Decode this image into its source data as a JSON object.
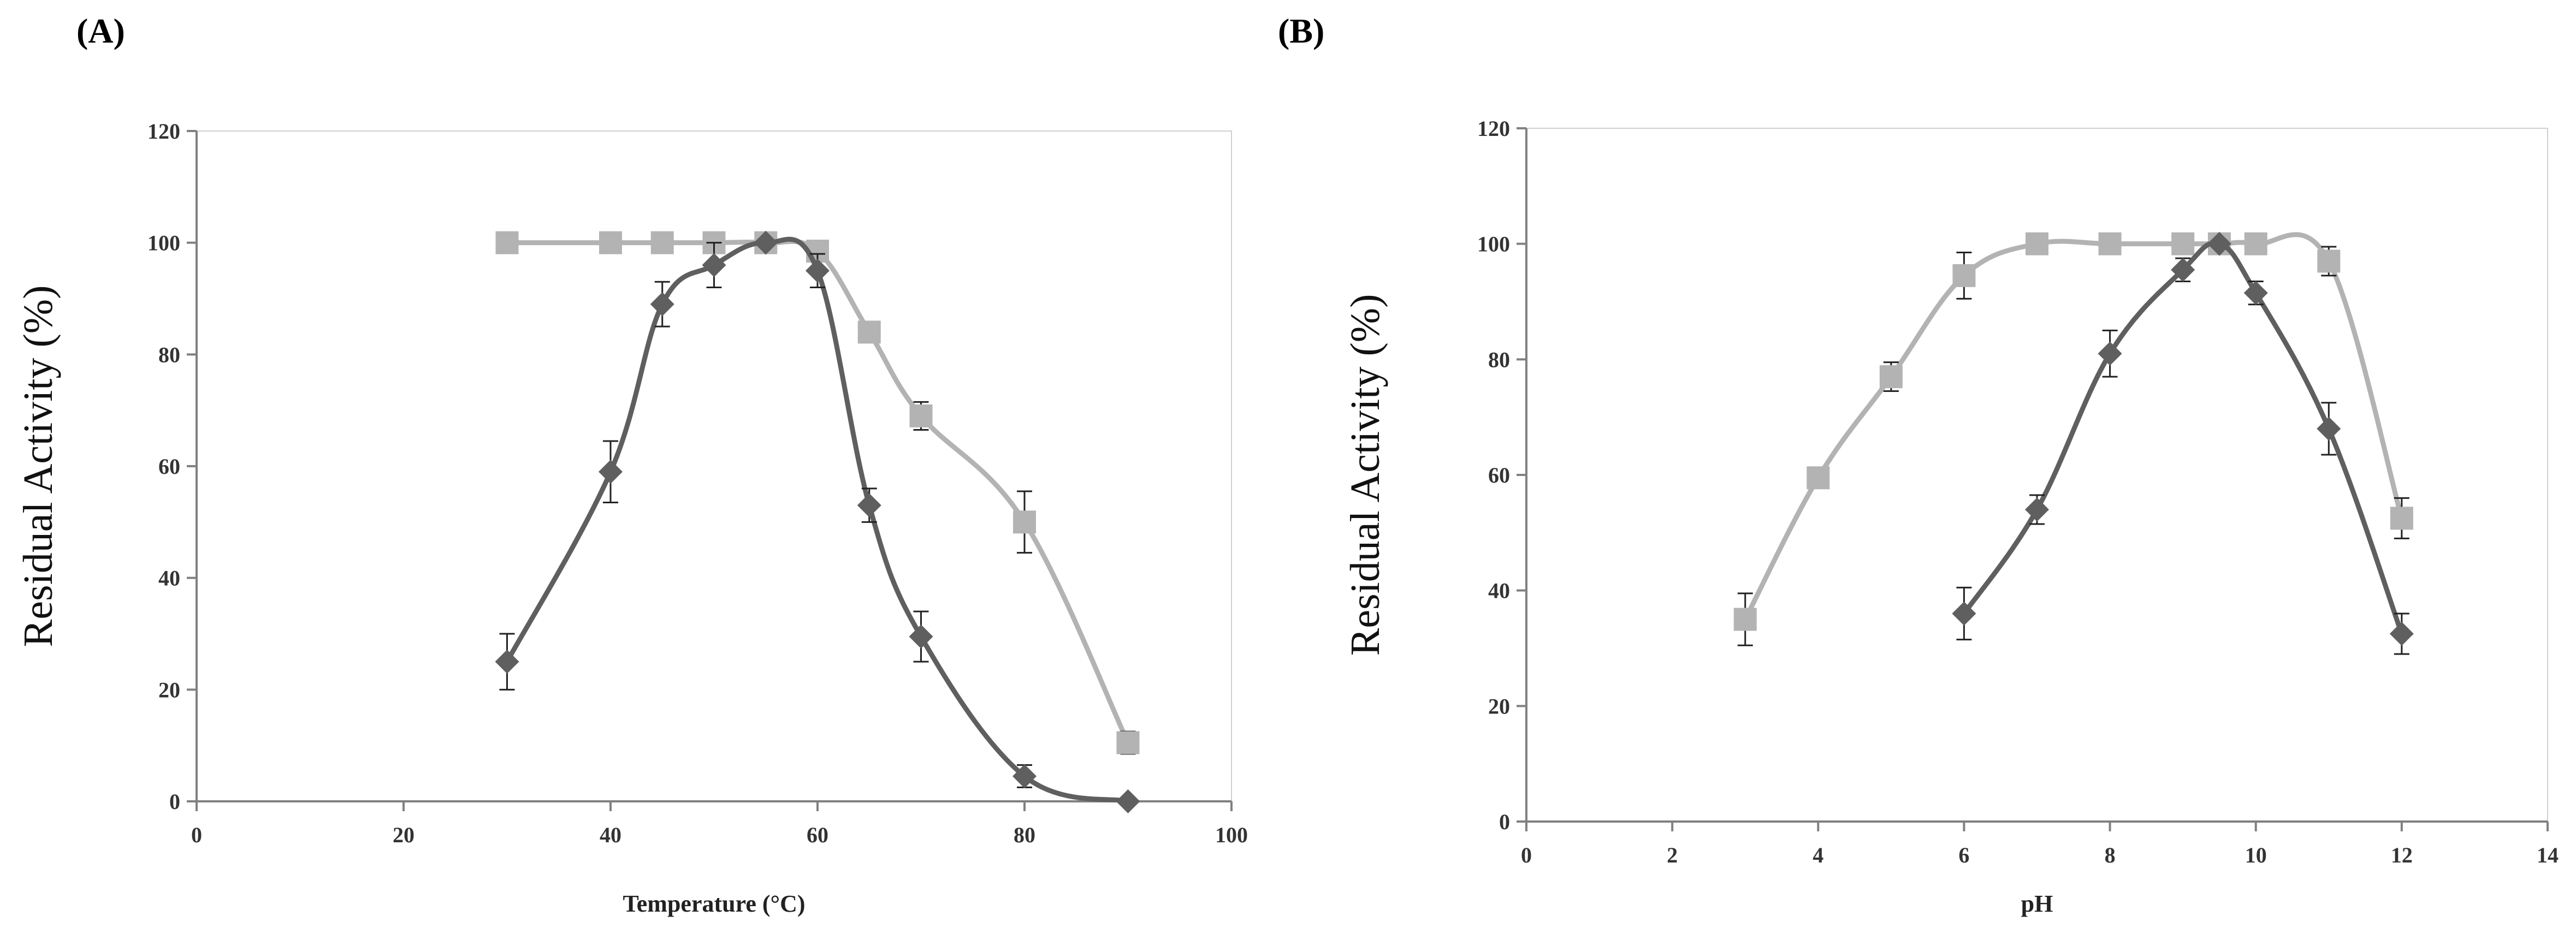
{
  "panels": {
    "a_label": "(A)",
    "b_label": "(B)"
  },
  "colors": {
    "series_dark": "#5f5f5f",
    "series_light": "#b3b3b3",
    "axis": "#808080"
  },
  "chart_data": [
    {
      "id": "A",
      "type": "line",
      "title": "",
      "xlabel": "Temperature (°C)",
      "ylabel": "Residual Activity (%)",
      "xlim": [
        0,
        100
      ],
      "ylim": [
        0,
        120
      ],
      "xticks": [
        0,
        20,
        40,
        60,
        80,
        100
      ],
      "yticks": [
        0,
        20,
        40,
        60,
        80,
        100,
        120
      ],
      "grid": false,
      "series": [
        {
          "name": "diamond",
          "marker": "diamond",
          "x": [
            30,
            40,
            45,
            50,
            55,
            60,
            65,
            70,
            80,
            90
          ],
          "y": [
            25,
            59,
            89,
            96,
            100,
            95,
            53,
            29.5,
            4.5,
            0
          ],
          "err": [
            5,
            5.5,
            4,
            4,
            0,
            3,
            3,
            4.5,
            2,
            0
          ]
        },
        {
          "name": "square",
          "marker": "square",
          "x": [
            30,
            40,
            45,
            50,
            55,
            60,
            65,
            70,
            80,
            90
          ],
          "y": [
            100,
            100,
            100,
            100,
            100,
            98.5,
            84,
            69,
            50,
            10.5
          ],
          "err": [
            0,
            0,
            0,
            0,
            0,
            0,
            0,
            2.5,
            5.5,
            2
          ]
        }
      ]
    },
    {
      "id": "B",
      "type": "line",
      "title": "",
      "xlabel": "pH",
      "ylabel": "Residual Activity (%)",
      "xlim": [
        0,
        14
      ],
      "ylim": [
        0,
        120
      ],
      "xticks": [
        0,
        2,
        4,
        6,
        8,
        10,
        12,
        14
      ],
      "yticks": [
        0,
        20,
        40,
        60,
        80,
        100,
        120
      ],
      "grid": false,
      "series": [
        {
          "name": "diamond",
          "marker": "diamond",
          "x": [
            6,
            7,
            8,
            9,
            9.5,
            10,
            11,
            12
          ],
          "y": [
            36,
            54,
            81,
            95.5,
            100,
            91.5,
            68,
            32.5
          ],
          "err": [
            4.5,
            2.5,
            4,
            2,
            0,
            2,
            4.5,
            3.5
          ]
        },
        {
          "name": "square",
          "marker": "square",
          "x": [
            3,
            4,
            5,
            6,
            7,
            8,
            9,
            9.5,
            10,
            11,
            12
          ],
          "y": [
            35,
            59.5,
            77,
            94.5,
            100,
            100,
            100,
            100,
            100,
            97,
            52.5
          ],
          "err": [
            4.5,
            0,
            2.5,
            4,
            0,
            0,
            0,
            0,
            0,
            2.5,
            3.5
          ]
        }
      ]
    }
  ]
}
